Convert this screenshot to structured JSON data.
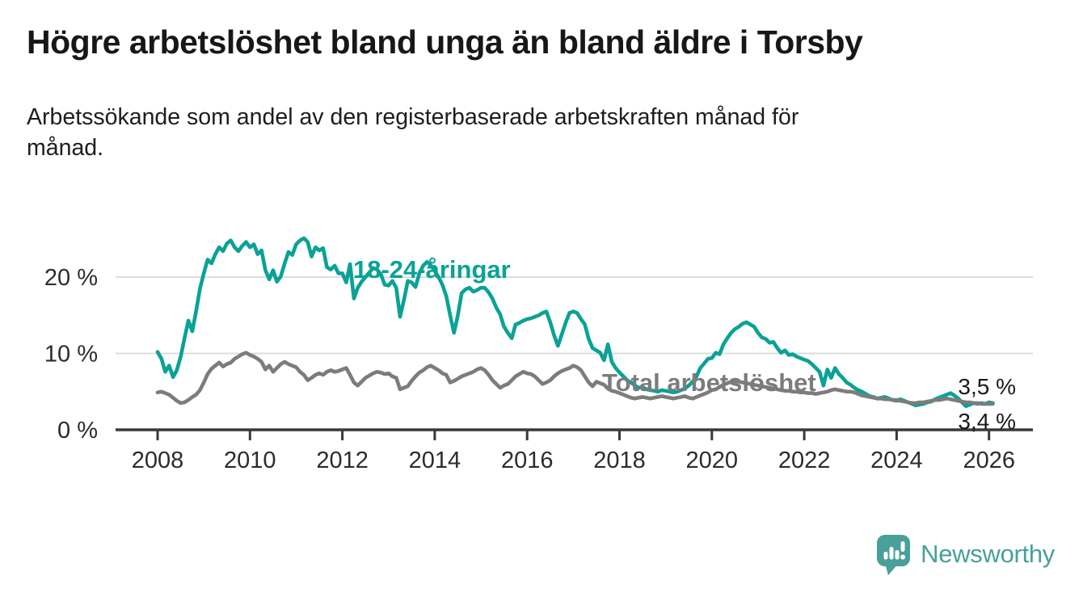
{
  "header": {
    "title": "Högre arbetslöshet bland unga än bland äldre i Torsby",
    "subtitle": "Arbetssökande som andel av den registerbaserade arbetskraften månad för\nmånad."
  },
  "chart_data": {
    "type": "line",
    "title": "Högre arbetslöshet bland unga än bland äldre i Torsby",
    "subtitle": "Arbetssökande som andel av den registerbaserade arbetskraften månad för månad.",
    "x_start": "2008-01",
    "x_step_months": 1,
    "x_ticks": [
      2008,
      2010,
      2012,
      2014,
      2016,
      2018,
      2020,
      2022,
      2024,
      2026
    ],
    "y_ticks": [
      {
        "value": 0,
        "label": "0 %"
      },
      {
        "value": 10,
        "label": "10 %"
      },
      {
        "value": 20,
        "label": "20 %"
      }
    ],
    "ylim": [
      0,
      27
    ],
    "grid": "horizontal-only",
    "legend": "inline-labels",
    "colors": {
      "young": "#0ba296",
      "total": "#7c7c7c",
      "axis": "#3a3a3a",
      "gridline": "#dcdcdc",
      "tick_text": "#2c2c2c",
      "value_label": "#1a1a1a"
    },
    "series": [
      {
        "name": "18-24-åringar",
        "color": "#0ba296",
        "last_value_label": "3,5 %",
        "values": [
          10.2,
          9.3,
          7.6,
          8.4,
          6.9,
          7.8,
          9.6,
          12.0,
          14.3,
          12.9,
          15.5,
          18.5,
          20.5,
          22.3,
          21.8,
          23.0,
          23.9,
          23.4,
          24.4,
          24.8,
          23.9,
          23.4,
          24.1,
          24.6,
          23.9,
          24.3,
          23.0,
          23.5,
          20.9,
          19.7,
          20.9,
          19.4,
          20.1,
          21.8,
          23.3,
          22.9,
          24.3,
          24.8,
          25.1,
          24.6,
          22.7,
          23.9,
          23.5,
          23.8,
          21.3,
          21.0,
          21.5,
          20.5,
          20.5,
          19.3,
          21.7,
          17.2,
          18.6,
          19.4,
          20.0,
          20.6,
          21.2,
          21.0,
          20.4,
          19.0,
          18.9,
          19.5,
          18.6,
          14.8,
          17.0,
          19.5,
          19.3,
          18.7,
          20.5,
          21.5,
          22.0,
          21.5,
          20.8,
          20.0,
          19.0,
          17.5,
          15.0,
          12.7,
          15.0,
          17.9,
          18.4,
          18.6,
          18.1,
          18.3,
          18.6,
          18.6,
          18.0,
          17.2,
          16.0,
          15.1,
          13.5,
          12.7,
          12.0,
          13.8,
          14.0,
          14.3,
          14.5,
          14.6,
          14.8,
          15.0,
          15.3,
          15.5,
          14.1,
          12.4,
          11.0,
          12.5,
          14.0,
          15.3,
          15.5,
          15.3,
          14.5,
          13.8,
          11.9,
          10.7,
          10.4,
          10.1,
          9.1,
          11.2,
          8.9,
          8.1,
          7.5,
          7.0,
          6.5,
          6.2,
          5.8,
          5.5,
          5.6,
          5.3,
          5.2,
          5.1,
          5.0,
          5.2,
          5.1,
          5.0,
          4.9,
          5.0,
          5.2,
          5.4,
          5.8,
          6.3,
          7.0,
          8.1,
          8.7,
          9.3,
          9.4,
          10.1,
          9.9,
          11.2,
          12.0,
          12.7,
          13.2,
          13.5,
          13.9,
          14.1,
          13.8,
          13.5,
          12.7,
          12.1,
          11.9,
          11.4,
          11.5,
          10.7,
          10.1,
          10.4,
          9.8,
          9.9,
          9.6,
          9.4,
          9.2,
          9.0,
          8.6,
          8.1,
          7.6,
          5.8,
          7.9,
          6.8,
          8.1,
          7.3,
          6.8,
          6.2,
          5.9,
          5.5,
          5.2,
          5.0,
          4.7,
          4.4,
          4.3,
          4.1,
          4.2,
          4.3,
          4.1,
          3.9,
          3.8,
          4.0,
          3.8,
          3.6,
          3.4,
          3.2,
          3.3,
          3.4,
          3.6,
          3.7,
          4.0,
          4.2,
          4.4,
          4.6,
          4.8,
          4.5,
          4.1,
          3.6,
          3.1,
          3.3,
          3.5,
          3.4,
          3.5,
          3.4,
          3.6,
          3.5
        ]
      },
      {
        "name": "Total arbetslöshet",
        "color": "#7c7c7c",
        "last_value_label": "3,4 %",
        "values": [
          4.9,
          5.0,
          4.8,
          4.6,
          4.2,
          3.8,
          3.5,
          3.6,
          3.9,
          4.3,
          4.6,
          5.2,
          6.2,
          7.3,
          8.0,
          8.4,
          8.8,
          8.3,
          8.6,
          8.8,
          9.3,
          9.6,
          9.9,
          10.1,
          9.8,
          9.6,
          9.3,
          8.9,
          7.9,
          8.4,
          7.6,
          8.1,
          8.6,
          8.9,
          8.6,
          8.4,
          8.2,
          7.6,
          7.2,
          6.5,
          6.8,
          7.2,
          7.4,
          7.2,
          7.6,
          7.8,
          7.6,
          7.7,
          7.9,
          8.1,
          7.2,
          6.2,
          5.8,
          6.3,
          6.8,
          7.1,
          7.4,
          7.6,
          7.5,
          7.3,
          7.4,
          7.0,
          6.8,
          5.3,
          5.5,
          5.7,
          6.4,
          7.0,
          7.5,
          7.8,
          8.2,
          8.4,
          8.1,
          7.8,
          7.4,
          7.2,
          6.2,
          6.4,
          6.7,
          7.0,
          7.2,
          7.4,
          7.6,
          7.9,
          8.1,
          7.8,
          7.2,
          6.5,
          6.0,
          5.5,
          5.8,
          6.0,
          6.5,
          7.0,
          7.3,
          7.6,
          7.4,
          7.3,
          7.0,
          6.5,
          6.0,
          6.2,
          6.5,
          7.0,
          7.4,
          7.7,
          7.9,
          8.1,
          8.4,
          8.2,
          7.8,
          7.0,
          6.2,
          5.7,
          6.3,
          6.1,
          5.9,
          5.4,
          5.1,
          5.0,
          4.8,
          4.6,
          4.4,
          4.2,
          4.1,
          4.2,
          4.3,
          4.2,
          4.1,
          4.2,
          4.3,
          4.4,
          4.3,
          4.2,
          4.1,
          4.2,
          4.3,
          4.4,
          4.2,
          4.1,
          4.3,
          4.5,
          4.7,
          4.9,
          5.2,
          5.3,
          5.6,
          5.9,
          6.1,
          6.3,
          6.4,
          6.3,
          6.2,
          6.1,
          6.0,
          5.9,
          5.8,
          5.7,
          5.6,
          5.5,
          5.4,
          5.3,
          5.2,
          5.1,
          5.1,
          5.0,
          5.0,
          4.9,
          4.9,
          4.8,
          4.8,
          4.7,
          4.8,
          4.9,
          5.0,
          5.2,
          5.3,
          5.2,
          5.1,
          5.0,
          5.0,
          4.9,
          4.7,
          4.5,
          4.4,
          4.3,
          4.2,
          4.1,
          4.1,
          4.0,
          4.0,
          3.9,
          3.9,
          3.8,
          3.7,
          3.6,
          3.5,
          3.5,
          3.6,
          3.6,
          3.7,
          3.8,
          3.9,
          3.9,
          4.0,
          4.1,
          4.0,
          3.9,
          3.8,
          3.7,
          3.6,
          3.6,
          3.5,
          3.5,
          3.4,
          3.4,
          3.4,
          3.4
        ]
      }
    ]
  },
  "brand": {
    "text": "Newsworthy",
    "icon": "newsworthy-speech-bubble-bars-icon",
    "color": "#47a09a"
  }
}
